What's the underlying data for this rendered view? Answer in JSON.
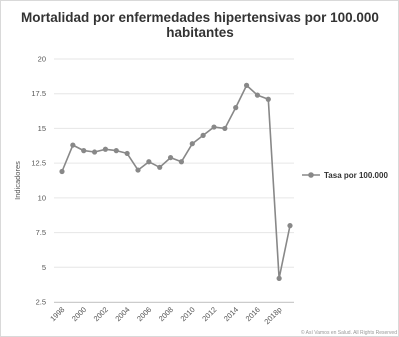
{
  "chart_data": {
    "type": "line",
    "title": "Mortalidad por enfermedades hipertensivas por 100.000 habitantes",
    "ylabel": "Indicadores",
    "xlabel": "",
    "ylim": [
      2.5,
      20
    ],
    "yticks": [
      "2.5",
      "5",
      "7.5",
      "10",
      "12.5",
      "15",
      "17.5",
      "20"
    ],
    "ytick_values": [
      2.5,
      5,
      7.5,
      10,
      12.5,
      15,
      17.5,
      20
    ],
    "xtick_labels": [
      "1998",
      "2000",
      "2002",
      "2004",
      "2006",
      "2008",
      "2010",
      "2012",
      "2014",
      "2016",
      "2018p"
    ],
    "grid": true,
    "legend_position": "right",
    "categories": [
      "1998",
      "1999",
      "2000",
      "2001",
      "2002",
      "2003",
      "2004",
      "2005",
      "2006",
      "2007",
      "2008",
      "2009",
      "2010",
      "2011",
      "2012",
      "2013",
      "2014",
      "2015",
      "2016",
      "2017",
      "2018p",
      "2019p"
    ],
    "series": [
      {
        "name": "Tasa por 100.000",
        "color": "#888888",
        "values": [
          11.9,
          13.8,
          13.4,
          13.3,
          13.5,
          13.4,
          13.2,
          12.0,
          12.6,
          12.2,
          12.9,
          12.6,
          13.9,
          14.5,
          15.1,
          15.0,
          16.5,
          18.1,
          17.4,
          17.1,
          4.2,
          8.0
        ]
      }
    ],
    "credits": "© Así Vamos en Salud. All Rights Reserved"
  }
}
